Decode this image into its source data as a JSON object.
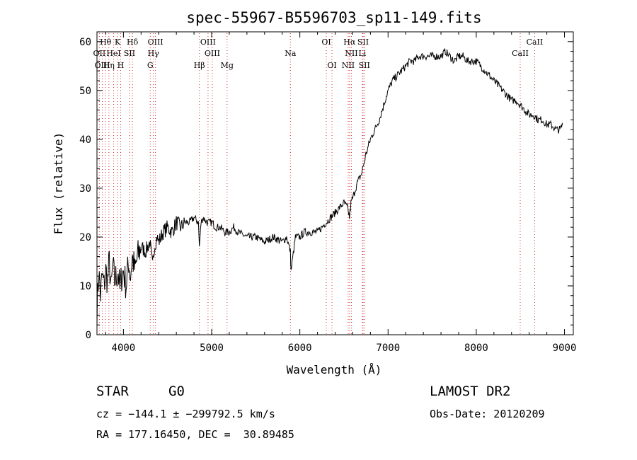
{
  "chart_data": {
    "type": "line",
    "title": "spec-55967-B5596703_sp11-149.fits",
    "xlabel": "Wavelength (Å)",
    "ylabel": "Flux (relative)",
    "xlim": [
      3700,
      9100
    ],
    "ylim": [
      0,
      62
    ],
    "xticks": [
      4000,
      5000,
      6000,
      7000,
      8000,
      9000
    ],
    "yticks": [
      0,
      10,
      20,
      30,
      40,
      50,
      60
    ],
    "series": [
      {
        "name": "flux",
        "x": [
          3700,
          3720,
          3740,
          3760,
          3780,
          3800,
          3820,
          3840,
          3860,
          3880,
          3900,
          3920,
          3940,
          3960,
          3980,
          4000,
          4030,
          4060,
          4080,
          4100,
          4130,
          4160,
          4200,
          4250,
          4300,
          4330,
          4350,
          4380,
          4400,
          4450,
          4500,
          4550,
          4600,
          4650,
          4700,
          4750,
          4800,
          4850,
          4861,
          4880,
          4900,
          4950,
          5000,
          5050,
          5100,
          5150,
          5200,
          5250,
          5300,
          5400,
          5500,
          5600,
          5700,
          5800,
          5850,
          5893,
          5900,
          5950,
          6000,
          6050,
          6100,
          6150,
          6200,
          6250,
          6300,
          6350,
          6400,
          6450,
          6500,
          6540,
          6563,
          6580,
          6600,
          6650,
          6700,
          6750,
          6800,
          6850,
          6900,
          6950,
          7000,
          7050,
          7100,
          7150,
          7200,
          7250,
          7300,
          7350,
          7400,
          7450,
          7500,
          7550,
          7600,
          7650,
          7700,
          7750,
          7800,
          7850,
          7900,
          7950,
          8000,
          8050,
          8100,
          8150,
          8200,
          8250,
          8300,
          8350,
          8400,
          8450,
          8500,
          8550,
          8600,
          8650,
          8700,
          8750,
          8800,
          8850,
          8900,
          8950,
          8980
        ],
        "y": [
          5,
          13,
          8,
          12,
          10,
          13,
          11,
          15,
          9,
          14,
          11,
          12,
          13,
          9,
          12,
          13,
          10,
          15,
          12,
          16,
          13,
          16,
          18,
          17,
          19,
          14,
          18,
          20,
          19,
          21,
          22,
          21,
          23,
          22,
          23,
          23,
          24,
          23,
          18,
          23,
          24,
          23,
          23,
          22,
          22,
          21,
          21,
          22,
          21,
          20,
          20,
          19,
          20,
          19,
          20,
          17,
          13,
          20,
          20,
          21,
          21,
          21,
          21,
          22,
          23,
          24,
          25,
          26,
          27,
          26,
          24,
          27,
          28,
          31,
          33,
          37,
          40,
          42,
          44,
          47,
          50,
          52,
          53,
          54,
          55,
          56,
          56,
          57,
          57,
          57,
          57,
          57,
          57,
          58,
          57,
          56,
          57,
          57,
          56,
          56,
          56,
          55,
          54,
          53,
          52,
          51,
          50,
          49,
          48,
          48,
          47,
          46,
          45,
          45,
          44,
          44,
          43,
          43,
          42,
          42,
          43
        ]
      }
    ],
    "lines": [
      {
        "label": "Hθ",
        "wl": 3798,
        "row": 0
      },
      {
        "label": "OII",
        "wl": 3727,
        "row": 1
      },
      {
        "label": "OIII",
        "wl": 3760,
        "row": 2
      },
      {
        "label": "K",
        "wl": 3934,
        "row": 0
      },
      {
        "label": "HeI",
        "wl": 3889,
        "row": 1
      },
      {
        "label": "Hη",
        "wl": 3835,
        "row": 2
      },
      {
        "label": "Hδ",
        "wl": 4102,
        "row": 0
      },
      {
        "label": "SII",
        "wl": 4069,
        "row": 1
      },
      {
        "label": "H",
        "wl": 3969,
        "row": 2
      },
      {
        "label": "OIII",
        "wl": 4363,
        "row": 0
      },
      {
        "label": "Hγ",
        "wl": 4340,
        "row": 1
      },
      {
        "label": "G",
        "wl": 4304,
        "row": 2
      },
      {
        "label": "OIII",
        "wl": 4959,
        "row": 0
      },
      {
        "label": "OIII",
        "wl": 5007,
        "row": 1
      },
      {
        "label": "Hβ",
        "wl": 4861,
        "row": 2
      },
      {
        "label": "Mg",
        "wl": 5175,
        "row": 2
      },
      {
        "label": "Na",
        "wl": 5893,
        "row": 1
      },
      {
        "label": "OI",
        "wl": 6300,
        "row": 0
      },
      {
        "label": "OI",
        "wl": 6364,
        "row": 2
      },
      {
        "label": "Hα",
        "wl": 6563,
        "row": 0
      },
      {
        "label": "SII",
        "wl": 6717,
        "row": 0
      },
      {
        "label": "NII",
        "wl": 6584,
        "row": 1
      },
      {
        "label": "Li",
        "wl": 6708,
        "row": 1
      },
      {
        "label": "NII",
        "wl": 6548,
        "row": 2
      },
      {
        "label": "SII",
        "wl": 6731,
        "row": 2
      },
      {
        "label": "CaII",
        "wl": 8662,
        "row": 0
      },
      {
        "label": "CaII",
        "wl": 8498,
        "row": 1
      }
    ],
    "line_color": "#d73030"
  },
  "info": {
    "class_label": "STAR",
    "subclass_label": "G0",
    "survey": "LAMOST DR2",
    "cz": "cz = −144.1 ± −299792.5 km/s",
    "obs_date": "Obs-Date: 20120209",
    "coords": "RA = 177.16450, DEC =  30.89485"
  }
}
